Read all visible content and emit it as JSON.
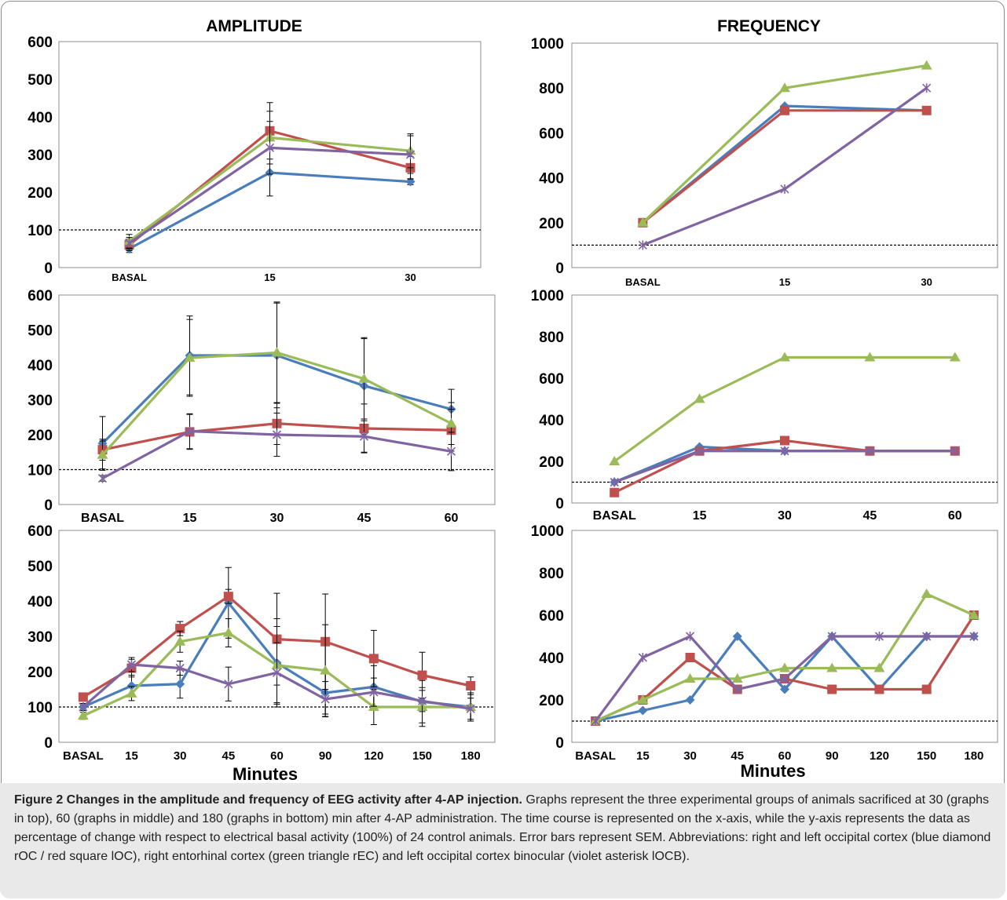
{
  "figure": {
    "caption_title": "Figure 2 Changes in the amplitude and frequency of EEG activity after 4-AP injection.",
    "caption_text": "Graphs represent the three experimental groups of animals sacrificed at 30 (graphs in top), 60 (graphs in middle) and 180 (graphs in bottom) min after 4-AP administration. The time course is represented on the x-axis, while the y-axis represents the data as percentage of change with respect to electrical basal activity (100%) of 24 control animals. Error bars represent SEM. Abbreviations: right and left occipital cortex (blue diamond rOC / red square lOC), right entorhinal cortex (green triangle rEC) and left occipital cortex binocular (violet asterisk lOCB).",
    "colors": {
      "rOC": "#4a7ebb",
      "lOC": "#c0504d",
      "rEC": "#9bbb59",
      "lOCB": "#8064a2",
      "baseline": "#000000"
    },
    "markers": {
      "rOC": "diamond",
      "lOC": "square",
      "rEC": "triangle",
      "lOCB": "asterisk"
    }
  },
  "chart_data": [
    {
      "id": "amp30",
      "type": "line",
      "title": "AMPLITUDE",
      "xlabel": "",
      "categories": [
        "BASAL",
        "15",
        "30"
      ],
      "ylim": [
        0,
        600
      ],
      "yticks": [
        "0",
        "100",
        "200",
        "300",
        "400",
        "500",
        "600"
      ],
      "baseline": 100,
      "grid": false,
      "series": [
        {
          "key": "rOC",
          "values": [
            50,
            252,
            228
          ],
          "err": [
            10,
            62,
            8
          ]
        },
        {
          "key": "lOC",
          "values": [
            60,
            363,
            265
          ],
          "err": [
            15,
            75,
            30
          ]
        },
        {
          "key": "rEC",
          "values": [
            70,
            345,
            310
          ],
          "err": [
            18,
            70,
            45
          ]
        },
        {
          "key": "lOCB",
          "values": [
            65,
            318,
            300
          ],
          "err": [
            15,
            70,
            50
          ]
        }
      ]
    },
    {
      "id": "freq30",
      "type": "line",
      "title": "FREQUENCY",
      "xlabel": "",
      "categories": [
        "BASAL",
        "15",
        "30"
      ],
      "ylim": [
        0,
        1000
      ],
      "yticks": [
        "0",
        "200",
        "400",
        "600",
        "800",
        "1000"
      ],
      "baseline": 100,
      "grid": false,
      "series": [
        {
          "key": "rOC",
          "values": [
            200,
            720,
            700
          ]
        },
        {
          "key": "lOC",
          "values": [
            200,
            700,
            700
          ]
        },
        {
          "key": "rEC",
          "values": [
            200,
            800,
            900
          ]
        },
        {
          "key": "lOCB",
          "values": [
            100,
            350,
            800
          ]
        }
      ]
    },
    {
      "id": "amp60",
      "type": "line",
      "title": "",
      "xlabel": "",
      "categories": [
        "BASAL",
        "15",
        "30",
        "45",
        "60"
      ],
      "ylim": [
        0,
        600
      ],
      "yticks": [
        "0",
        "100",
        "200",
        "300",
        "400",
        "500",
        "600"
      ],
      "baseline": 100,
      "grid": false,
      "series": [
        {
          "key": "rOC",
          "values": [
            175,
            427,
            427,
            340,
            273
          ],
          "err": [
            77,
            113,
            150,
            138,
            57
          ]
        },
        {
          "key": "lOC",
          "values": [
            157,
            208,
            232,
            218,
            213
          ],
          "err": [
            30,
            50,
            60,
            70,
            60
          ]
        },
        {
          "key": "rEC",
          "values": [
            142,
            420,
            435,
            360,
            232
          ],
          "err": [
            40,
            110,
            145,
            115,
            60
          ]
        },
        {
          "key": "lOCB",
          "values": [
            75,
            210,
            200,
            195,
            152
          ],
          "err": [
            8,
            50,
            62,
            45,
            55
          ]
        }
      ]
    },
    {
      "id": "freq60",
      "type": "line",
      "title": "",
      "xlabel": "",
      "categories": [
        "BASAL",
        "15",
        "30",
        "45",
        "60"
      ],
      "ylim": [
        0,
        1000
      ],
      "yticks": [
        "0",
        "200",
        "400",
        "600",
        "800",
        "1000"
      ],
      "baseline": 100,
      "grid": false,
      "series": [
        {
          "key": "rOC",
          "values": [
            100,
            270,
            250,
            250,
            250
          ]
        },
        {
          "key": "lOC",
          "values": [
            50,
            250,
            300,
            250,
            250
          ]
        },
        {
          "key": "rEC",
          "values": [
            200,
            500,
            700,
            700,
            700
          ]
        },
        {
          "key": "lOCB",
          "values": [
            100,
            250,
            250,
            250,
            250
          ]
        }
      ]
    },
    {
      "id": "amp180",
      "type": "line",
      "title": "",
      "xlabel": "Minutes",
      "categories": [
        "BASAL",
        "15",
        "30",
        "45",
        "60",
        "90",
        "120",
        "150",
        "180"
      ],
      "ylim": [
        0,
        600
      ],
      "yticks": [
        "0",
        "100",
        "200",
        "300",
        "400",
        "500",
        "600"
      ],
      "baseline": 100,
      "grid": false,
      "series": [
        {
          "key": "rOC",
          "values": [
            100,
            160,
            165,
            395,
            225,
            140,
            157,
            115,
            100
          ],
          "err": [
            10,
            30,
            40,
            100,
            125,
            60,
            60,
            60,
            40
          ]
        },
        {
          "key": "lOC",
          "values": [
            128,
            210,
            322,
            413,
            292,
            285,
            237,
            190,
            160
          ],
          "err": [
            10,
            25,
            20,
            20,
            130,
            135,
            80,
            65,
            25
          ]
        },
        {
          "key": "rEC",
          "values": [
            75,
            138,
            285,
            310,
            218,
            203,
            100,
            100,
            100
          ],
          "err": [
            10,
            20,
            30,
            40,
            110,
            130,
            50,
            55,
            40
          ]
        },
        {
          "key": "lOCB",
          "values": [
            100,
            220,
            210,
            165,
            197,
            122,
            142,
            117,
            95
          ],
          "err": [
            10,
            20,
            20,
            48,
            85,
            50,
            40,
            30,
            30
          ]
        }
      ]
    },
    {
      "id": "freq180",
      "type": "line",
      "title": "",
      "xlabel": "Minutes",
      "categories": [
        "BASAL",
        "15",
        "30",
        "45",
        "60",
        "90",
        "120",
        "150",
        "180"
      ],
      "ylim": [
        0,
        1000
      ],
      "yticks": [
        "0",
        "200",
        "400",
        "600",
        "800",
        "1000"
      ],
      "baseline": 100,
      "grid": false,
      "series": [
        {
          "key": "rOC",
          "values": [
            100,
            150,
            200,
            500,
            250,
            500,
            250,
            500,
            500
          ]
        },
        {
          "key": "lOC",
          "values": [
            100,
            200,
            400,
            250,
            300,
            250,
            250,
            250,
            600
          ]
        },
        {
          "key": "rEC",
          "values": [
            100,
            200,
            300,
            300,
            350,
            350,
            350,
            700,
            600
          ]
        },
        {
          "key": "lOCB",
          "values": [
            100,
            400,
            500,
            250,
            300,
            500,
            500,
            500,
            500
          ]
        }
      ]
    }
  ]
}
